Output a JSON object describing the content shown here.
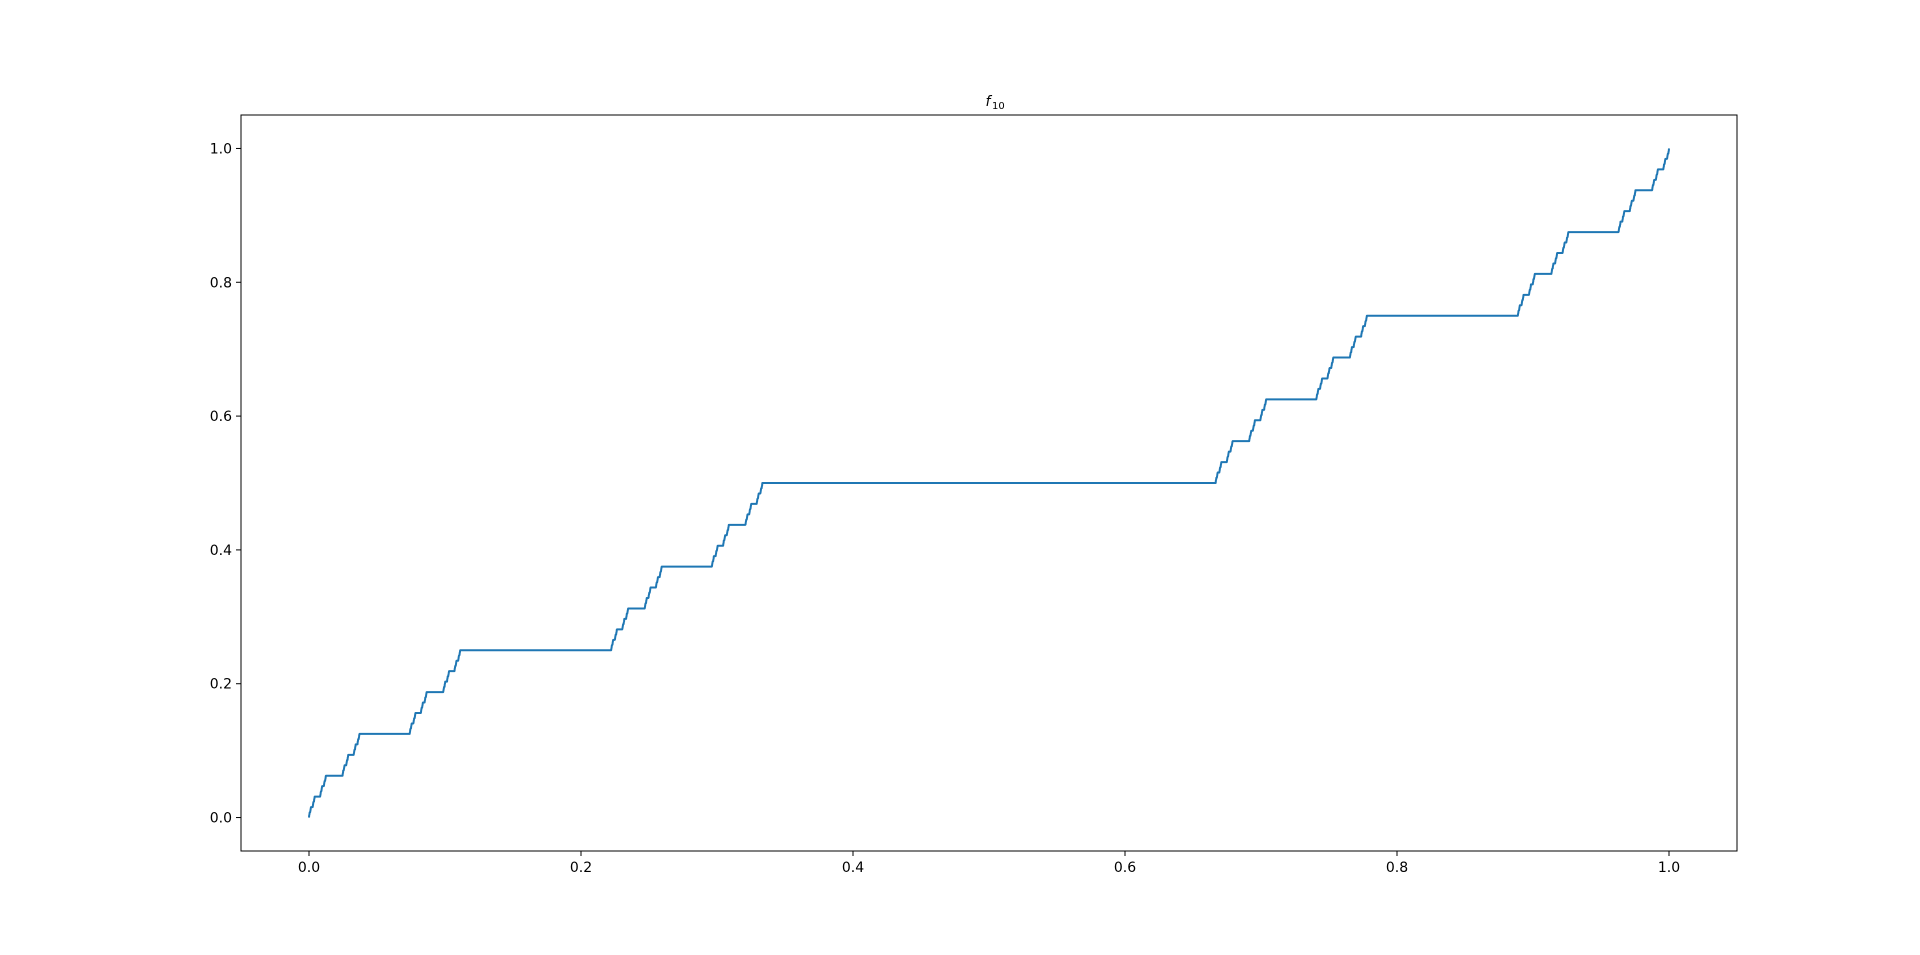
{
  "chart_data": {
    "type": "line",
    "title": "f",
    "title_subscript": "10",
    "xlabel": "",
    "ylabel": "",
    "xlim": [
      -0.05,
      1.05
    ],
    "ylim": [
      -0.05,
      1.05
    ],
    "x_ticks": [
      0.0,
      0.2,
      0.4,
      0.6,
      0.8,
      1.0
    ],
    "x_tick_labels": [
      "0.0",
      "0.2",
      "0.4",
      "0.6",
      "0.8",
      "1.0"
    ],
    "y_ticks": [
      0.0,
      0.2,
      0.4,
      0.6,
      0.8,
      1.0
    ],
    "y_tick_labels": [
      "0.0",
      "0.2",
      "0.4",
      "0.6",
      "0.8",
      "1.0"
    ],
    "grid": false,
    "legend": false,
    "series": [
      {
        "color": "#1f77b4",
        "function": "Cantor function approximation, 10 iterations, on [0, 1]",
        "iterations": 10
      }
    ]
  }
}
